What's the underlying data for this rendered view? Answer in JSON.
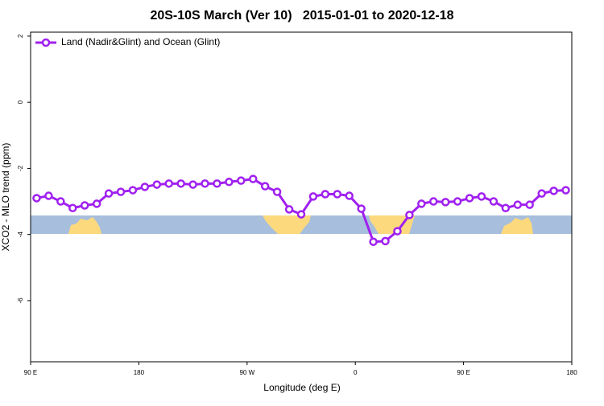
{
  "chart_data": {
    "type": "line",
    "title": "20S-10S March (Ver 10)   2015-01-01 to 2020-12-18",
    "xlabel": "Longitude (deg E)",
    "ylabel": "XCO2 - MLO trend (ppm)",
    "x": [
      95,
      105,
      115,
      125,
      135,
      145,
      155,
      165,
      175,
      185,
      195,
      205,
      215,
      225,
      235,
      245,
      255,
      265,
      275,
      285,
      295,
      305,
      315,
      325,
      335,
      345,
      355,
      365,
      375,
      385,
      395,
      405,
      415,
      425,
      435,
      445,
      455,
      465,
      475,
      485,
      495,
      505,
      515,
      525,
      535
    ],
    "series": [
      {
        "name": "Land (Nadir&Glint) and Ocean (Glint)",
        "color": "#a020f0",
        "values": [
          -2.9,
          -2.83,
          -3.0,
          -3.2,
          -3.12,
          -3.07,
          -2.76,
          -2.71,
          -2.66,
          -2.56,
          -2.49,
          -2.46,
          -2.46,
          -2.49,
          -2.46,
          -2.46,
          -2.41,
          -2.37,
          -2.32,
          -2.54,
          -2.71,
          -3.24,
          -3.39,
          -2.85,
          -2.78,
          -2.78,
          -2.83,
          -3.22,
          -4.22,
          -4.2,
          -3.9,
          -3.41,
          -3.07,
          -3.0,
          -3.02,
          -3.0,
          -2.9,
          -2.85,
          -3.0,
          -3.2,
          -3.1,
          -3.1,
          -2.76,
          -2.68,
          -2.66
        ]
      }
    ],
    "xlim": [
      90,
      540
    ],
    "xticks": [
      {
        "value": 90,
        "label": "90 E"
      },
      180,
      {
        "value": 270,
        "label": "90 W"
      },
      {
        "value": 360,
        "label": "0"
      },
      {
        "value": 450,
        "label": "90 E"
      },
      {
        "value": 540,
        "label": "180"
      }
    ],
    "ylim": [
      -7.85,
      2.12
    ],
    "yticks": [
      -6,
      -4,
      -2,
      0,
      2
    ],
    "legend": "top-left"
  }
}
